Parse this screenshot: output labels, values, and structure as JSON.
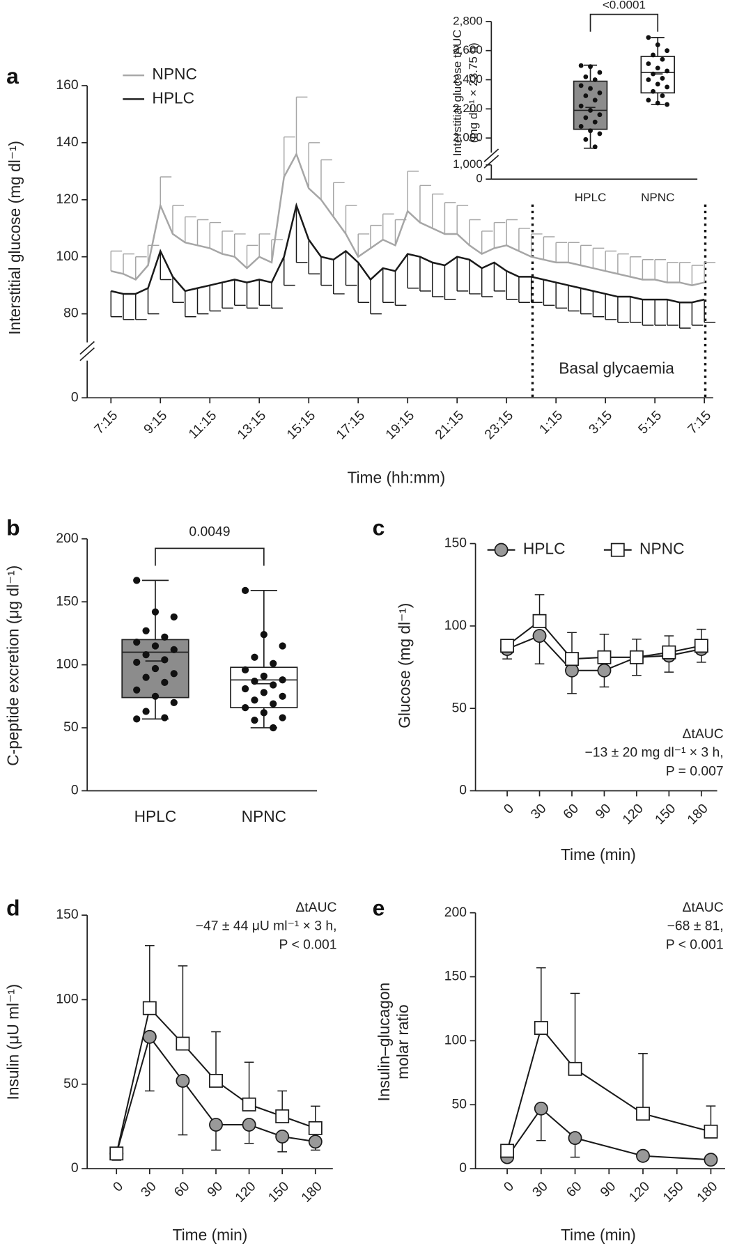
{
  "chart_data": [
    {
      "type": "line",
      "panel": "a",
      "ylabel": "Interstitial glucose (mg dl⁻¹)",
      "xlabel": "Time (hh:mm)",
      "categories": [
        "7:15",
        null,
        null,
        null,
        "9:15",
        null,
        null,
        null,
        "11:15",
        null,
        null,
        null,
        "13:15",
        null,
        null,
        null,
        "15:15",
        null,
        null,
        null,
        "17:15",
        null,
        null,
        null,
        "19:15",
        null,
        null,
        null,
        "21:15",
        null,
        null,
        null,
        "23:15",
        null,
        null,
        null,
        "1:15",
        null,
        null,
        null,
        "3:15",
        null,
        null,
        null,
        "5:15",
        null,
        null,
        null,
        "7:15"
      ],
      "series": [
        {
          "name": "NPNC",
          "color": "#a6a6a6",
          "error_direction": "up",
          "values": [
            95,
            94,
            92,
            97,
            118,
            108,
            105,
            104,
            103,
            101,
            100,
            96,
            100,
            98,
            128,
            136,
            124,
            120,
            114,
            108,
            100,
            103,
            106,
            104,
            116,
            112,
            110,
            108,
            108,
            104,
            101,
            103,
            104,
            102,
            100,
            99,
            98,
            98,
            97,
            96,
            95,
            94,
            93,
            92,
            92,
            91,
            91,
            90,
            91
          ],
          "errors": [
            7,
            7,
            8,
            7,
            10,
            10,
            9,
            9,
            9,
            8,
            8,
            8,
            8,
            8,
            14,
            20,
            16,
            14,
            12,
            10,
            8,
            8,
            9,
            9,
            14,
            13,
            12,
            11,
            10,
            9,
            8,
            9,
            9,
            8,
            8,
            8,
            7,
            7,
            7,
            7,
            7,
            7,
            7,
            7,
            7,
            7,
            7,
            7,
            7
          ]
        },
        {
          "name": "HPLC",
          "color": "#1a1a1a",
          "error_direction": "down",
          "values": [
            88,
            87,
            87,
            89,
            102,
            93,
            88,
            89,
            90,
            91,
            92,
            91,
            92,
            91,
            100,
            118,
            106,
            100,
            99,
            102,
            98,
            92,
            96,
            95,
            101,
            100,
            98,
            97,
            100,
            99,
            96,
            98,
            95,
            93,
            93,
            92,
            91,
            90,
            89,
            88,
            87,
            86,
            86,
            85,
            85,
            85,
            84,
            84,
            85
          ],
          "errors": [
            9,
            9,
            9,
            9,
            10,
            9,
            9,
            9,
            9,
            9,
            9,
            9,
            9,
            9,
            10,
            20,
            12,
            10,
            12,
            12,
            14,
            12,
            12,
            12,
            12,
            12,
            12,
            12,
            12,
            12,
            10,
            10,
            10,
            9,
            9,
            9,
            9,
            9,
            9,
            9,
            9,
            9,
            9,
            9,
            9,
            9,
            9,
            8,
            8
          ]
        }
      ],
      "ylim": [
        0,
        160
      ],
      "ybreak": [
        0,
        70
      ],
      "yticks": [
        0,
        80,
        100,
        120,
        140,
        160
      ],
      "legend": true,
      "annotation": [
        "Basal glycaemia"
      ]
    },
    {
      "type": "box",
      "ylabel": [
        "Interstitial glucose tAUC",
        "(mg dl⁻¹ × 23.75 h)"
      ],
      "boxes": [
        {
          "name": "HPLC",
          "color": "#8c8c8c",
          "min": 1930,
          "q1": 2060,
          "median": 2190,
          "q3": 2390,
          "max": 2500,
          "mean": 2210,
          "points": [
            2497,
            2490,
            2450,
            2420,
            2400,
            2360,
            2340,
            2310,
            2290,
            2260,
            2220,
            2190,
            2160,
            2140,
            2110,
            2080,
            2050,
            2030,
            1990,
            1940
          ]
        },
        {
          "name": "NPNC",
          "color": "#ffffff",
          "min": 2230,
          "q1": 2310,
          "median": 2450,
          "q3": 2560,
          "max": 2690,
          "mean": 2440,
          "points": [
            2690,
            2640,
            2600,
            2570,
            2540,
            2510,
            2480,
            2460,
            2440,
            2410,
            2400,
            2370,
            2350,
            2320,
            2290,
            2260,
            2240,
            2230
          ]
        }
      ],
      "ylim": [
        0,
        2800
      ],
      "ybreak": [
        1000,
        1900
      ],
      "yticks": [
        0,
        {
          "value": 1000,
          "label": "1,000"
        },
        {
          "value": 2000,
          "label": "2,000"
        },
        {
          "value": 2200,
          "label": "2,200"
        },
        {
          "value": 2400,
          "label": "2,400"
        },
        {
          "value": 2600,
          "label": "2,600"
        },
        {
          "value": 2800,
          "label": "2,800"
        }
      ],
      "significance": "<0.0001"
    },
    {
      "type": "box",
      "panel": "b",
      "ylabel": "C-peptide excretion (μg dl⁻¹)",
      "boxes": [
        {
          "name": "HPLC",
          "color": "#8c8c8c",
          "min": 57,
          "q1": 74,
          "median": 110,
          "q3": 120,
          "max": 167,
          "mean": 103,
          "points": [
            167,
            142,
            138,
            127,
            122,
            118,
            115,
            112,
            108,
            104,
            102,
            97,
            93,
            90,
            86,
            80,
            75,
            70,
            63,
            58,
            57
          ]
        },
        {
          "name": "NPNC",
          "color": "#ffffff",
          "min": 50,
          "q1": 66,
          "median": 88,
          "q3": 98,
          "max": 159,
          "mean": 85,
          "points": [
            159,
            124,
            115,
            106,
            101,
            96,
            91,
            88,
            87,
            84,
            81,
            78,
            75,
            72,
            69,
            66,
            62,
            58,
            56,
            50
          ]
        }
      ],
      "ylim": [
        0,
        200
      ],
      "yticks": [
        0,
        50,
        100,
        150,
        200
      ],
      "significance": "0.0049"
    },
    {
      "type": "line",
      "panel": "c",
      "ylabel": "Glucose (mg dl⁻¹)",
      "xlabel": "Time (min)",
      "x": [
        0,
        30,
        60,
        90,
        120,
        150,
        180
      ],
      "series": [
        {
          "name": "HPLC",
          "color": "#1a1a1a",
          "marker": "circle",
          "marker_fill": "#999999",
          "error_direction": "down",
          "values": [
            86,
            94,
            73,
            73,
            81,
            82,
            86
          ],
          "errors": [
            6,
            17,
            14,
            10,
            11,
            10,
            8
          ]
        },
        {
          "name": "NPNC",
          "color": "#1a1a1a",
          "marker": "square",
          "marker_fill": "#ffffff",
          "error_direction": "up",
          "values": [
            88,
            103,
            80,
            81,
            81,
            84,
            88
          ],
          "errors": [
            3,
            16,
            16,
            14,
            11,
            10,
            10
          ]
        }
      ],
      "xlim": [
        0,
        180
      ],
      "xticks": [
        0,
        30,
        60,
        90,
        120,
        150,
        180
      ],
      "ylim": [
        0,
        150
      ],
      "yticks": [
        0,
        50,
        100,
        150
      ],
      "legend": true,
      "annotation": [
        "ΔtAUC",
        "−13 ± 20 mg dl⁻¹ × 3 h,",
        "P = 0.007"
      ]
    },
    {
      "type": "line",
      "panel": "d",
      "ylabel": "Insulin (μU ml⁻¹)",
      "xlabel": "Time (min)",
      "x": [
        0,
        30,
        60,
        90,
        120,
        150,
        180
      ],
      "series": [
        {
          "name": "HPLC",
          "color": "#1a1a1a",
          "marker": "circle",
          "marker_fill": "#999999",
          "error_direction": "down",
          "values": [
            9,
            78,
            52,
            26,
            26,
            19,
            16
          ],
          "errors": [
            4,
            32,
            32,
            15,
            11,
            9,
            5
          ]
        },
        {
          "name": "NPNC",
          "color": "#1a1a1a",
          "marker": "square",
          "marker_fill": "#ffffff",
          "error_direction": "up",
          "values": [
            9,
            95,
            74,
            52,
            38,
            31,
            24
          ],
          "errors": [
            2,
            37,
            46,
            29,
            25,
            15,
            13
          ]
        }
      ],
      "xlim": [
        0,
        180
      ],
      "xticks": [
        0,
        30,
        60,
        90,
        120,
        150,
        180
      ],
      "ylim": [
        0,
        150
      ],
      "yticks": [
        0,
        50,
        100,
        150
      ],
      "legend": false,
      "annotation": [
        "ΔtAUC",
        "−47 ± 44 μU ml⁻¹ × 3 h,",
        "P < 0.001"
      ]
    },
    {
      "type": "line",
      "panel": "e",
      "ylabel": [
        "Insulin–glucagon",
        "molar ratio"
      ],
      "xlabel": "Time (min)",
      "x": [
        0,
        30,
        60,
        120,
        180
      ],
      "series": [
        {
          "name": "HPLC",
          "color": "#1a1a1a",
          "marker": "circle",
          "marker_fill": "#999999",
          "error_direction": "down",
          "values": [
            9,
            47,
            24,
            10,
            7
          ],
          "errors": [
            0,
            25,
            15,
            0,
            0
          ]
        },
        {
          "name": "NPNC",
          "color": "#1a1a1a",
          "marker": "square",
          "marker_fill": "#ffffff",
          "error_direction": "up",
          "values": [
            14,
            110,
            78,
            43,
            29
          ],
          "errors": [
            0,
            47,
            59,
            47,
            20
          ]
        }
      ],
      "xlim": [
        0,
        180
      ],
      "xticks": [
        0,
        30,
        60,
        90,
        120,
        150,
        180
      ],
      "ylim": [
        0,
        200
      ],
      "yticks": [
        0,
        50,
        100,
        150,
        200
      ],
      "legend": false,
      "annotation": [
        "ΔtAUC",
        "−68 ± 81,",
        "P < 0.001"
      ]
    }
  ]
}
